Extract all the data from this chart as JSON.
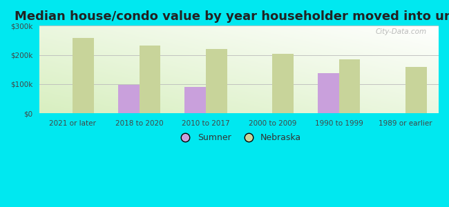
{
  "title": "Median house/condo value by year householder moved into unit",
  "categories": [
    "2021 or later",
    "2018 to 2020",
    "2010 to 2017",
    "2000 to 2009",
    "1990 to 1999",
    "1989 or earlier"
  ],
  "sumner_values": [
    null,
    98000,
    90000,
    null,
    137000,
    null
  ],
  "nebraska_values": [
    258000,
    233000,
    220000,
    204000,
    184000,
    158000
  ],
  "sumner_color": "#c9a0dc",
  "nebraska_color": "#c8d49a",
  "ylim": [
    0,
    300000
  ],
  "yticks": [
    0,
    100000,
    200000,
    300000
  ],
  "ytick_labels": [
    "$0",
    "$100k",
    "$200k",
    "$300k"
  ],
  "background_color": "#00e8f0",
  "bar_width": 0.32,
  "title_fontsize": 13,
  "watermark": "City-Data.com"
}
